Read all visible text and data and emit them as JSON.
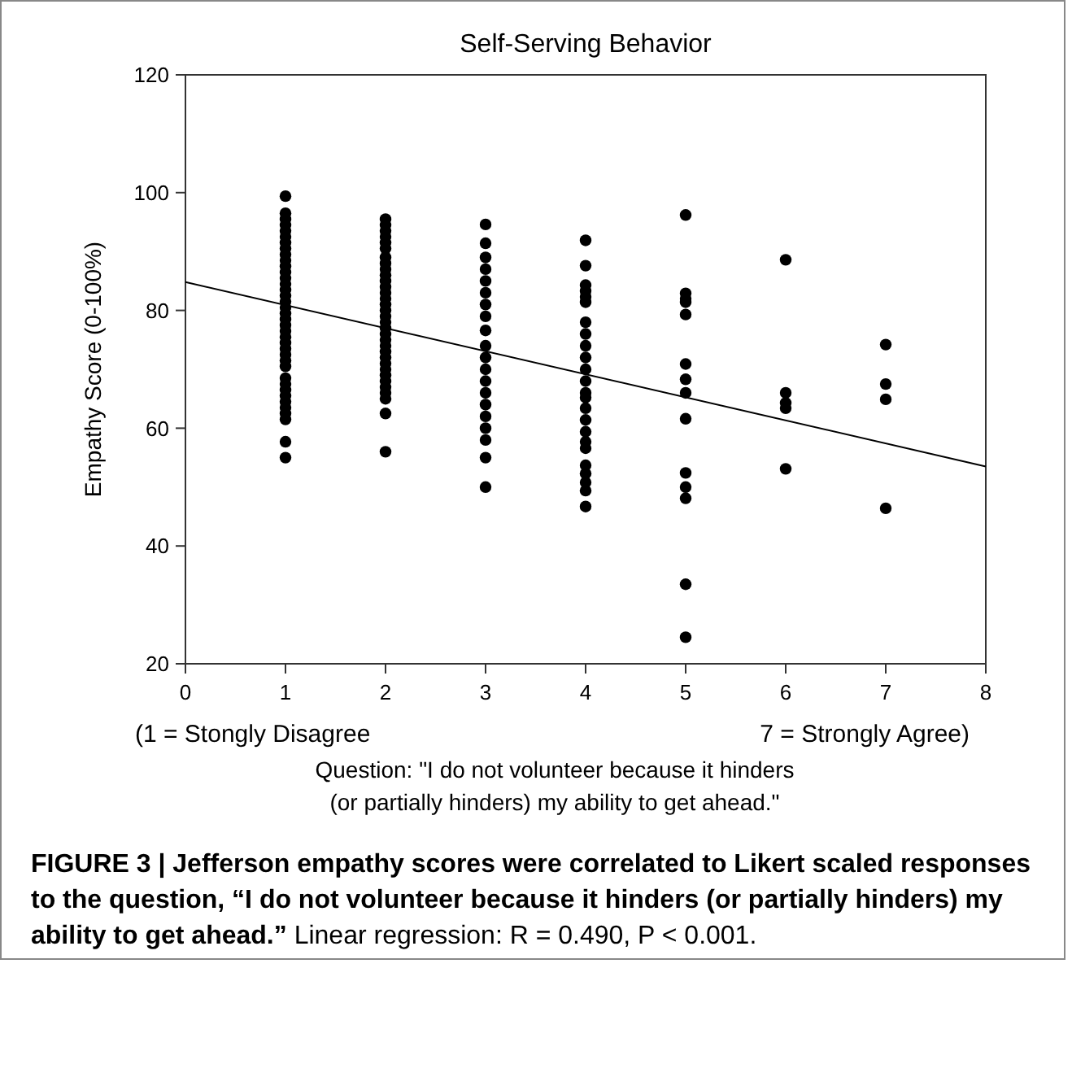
{
  "chart_data": {
    "type": "scatter",
    "title": "Self-Serving Behavior",
    "xlabel": "Question: \"I do not volunteer because it hinders\n(or partially hinders) my ability to get ahead.\"",
    "ylabel": "Empathy Score (0-100%)",
    "annotations": [
      "(1 = Stongly Disagree",
      "7 = Strongly Agree)",
      "FIGURE 3 | Jefferson empathy scores were correlated to Likert scaled responses to the question, “I do not volunteer because it hinders (or partially hinders) my ability to get ahead.”",
      "Linear regression: R = 0.490, P < 0.001."
    ],
    "xlim": [
      0,
      8
    ],
    "xticks": [
      0,
      1,
      2,
      3,
      4,
      5,
      6,
      7,
      8
    ],
    "ylim": [
      20,
      120
    ],
    "yticks": [
      20,
      40,
      60,
      80,
      100,
      120
    ],
    "grid": false,
    "marker": "circle",
    "series": [
      {
        "color": "#000000",
        "type": "scatter",
        "x": [
          1,
          1,
          1,
          1,
          1,
          1,
          1,
          1,
          1,
          1,
          1,
          1,
          1,
          1,
          1,
          1,
          1,
          1,
          1,
          1,
          1,
          1,
          1,
          1,
          1,
          1,
          1,
          1,
          1,
          1,
          1,
          1,
          1,
          1,
          1,
          1,
          1,
          1,
          2,
          2,
          2,
          2,
          2,
          2,
          2,
          2,
          2,
          2,
          2,
          2,
          2,
          2,
          2,
          2,
          2,
          2,
          2,
          2,
          2,
          2,
          2,
          2,
          2,
          2,
          2,
          2,
          2,
          2,
          2,
          2,
          2,
          3,
          3,
          3,
          3,
          3,
          3,
          3,
          3,
          3,
          3,
          3,
          3,
          3,
          3,
          3,
          3,
          3,
          3,
          3,
          3,
          4,
          4,
          4,
          4,
          4,
          4,
          4,
          4,
          4,
          4,
          4,
          4,
          4,
          4,
          4,
          4,
          4,
          4,
          4,
          4,
          4,
          4,
          4,
          4,
          5,
          5,
          5,
          5,
          5,
          5,
          5,
          5,
          5,
          5,
          5,
          5,
          5,
          5,
          6,
          6,
          6,
          6,
          6,
          7,
          7,
          7,
          7
        ],
        "values": [
          99.4,
          96.5,
          95.5,
          94.5,
          93.5,
          92.5,
          91.5,
          90.5,
          89.5,
          88.5,
          87.5,
          86.5,
          85.5,
          84.5,
          83.5,
          82.5,
          81.5,
          80.5,
          79.5,
          78.5,
          77.5,
          76.5,
          75.5,
          74.5,
          73.5,
          72.5,
          71.5,
          70.5,
          68.5,
          67.5,
          66.5,
          65.5,
          64.5,
          63.5,
          62.5,
          61.5,
          57.7,
          55,
          95.5,
          94.5,
          93.5,
          92.5,
          91.5,
          90.5,
          89,
          88,
          87,
          86,
          85,
          84,
          83,
          82,
          81,
          80,
          79,
          78,
          77,
          76,
          75,
          74,
          73,
          72,
          71,
          70,
          69,
          68,
          67,
          66,
          65,
          62.5,
          56,
          94.6,
          91.4,
          89,
          87,
          85,
          83,
          81,
          79,
          76.6,
          74,
          72,
          70,
          68,
          66,
          64,
          62,
          60,
          58,
          55,
          50,
          91.9,
          87.6,
          84.3,
          83.3,
          82.3,
          81.4,
          78,
          76,
          74,
          72,
          70,
          68,
          66,
          65.2,
          63.4,
          61.4,
          59.4,
          57.7,
          56.6,
          53.7,
          52.3,
          50.8,
          49.4,
          46.7,
          96.2,
          82.9,
          82,
          81.4,
          79.3,
          70.9,
          68.3,
          66,
          61.6,
          52.4,
          50,
          48.1,
          33.5,
          24.5,
          88.6,
          66,
          64.3,
          63.4,
          53.1,
          74.2,
          67.5,
          64.9,
          46.4
        ]
      },
      {
        "color": "#000000",
        "type": "line",
        "marker": "none",
        "x": [
          0,
          8
        ],
        "values": [
          84.8,
          53.5
        ]
      }
    ]
  }
}
